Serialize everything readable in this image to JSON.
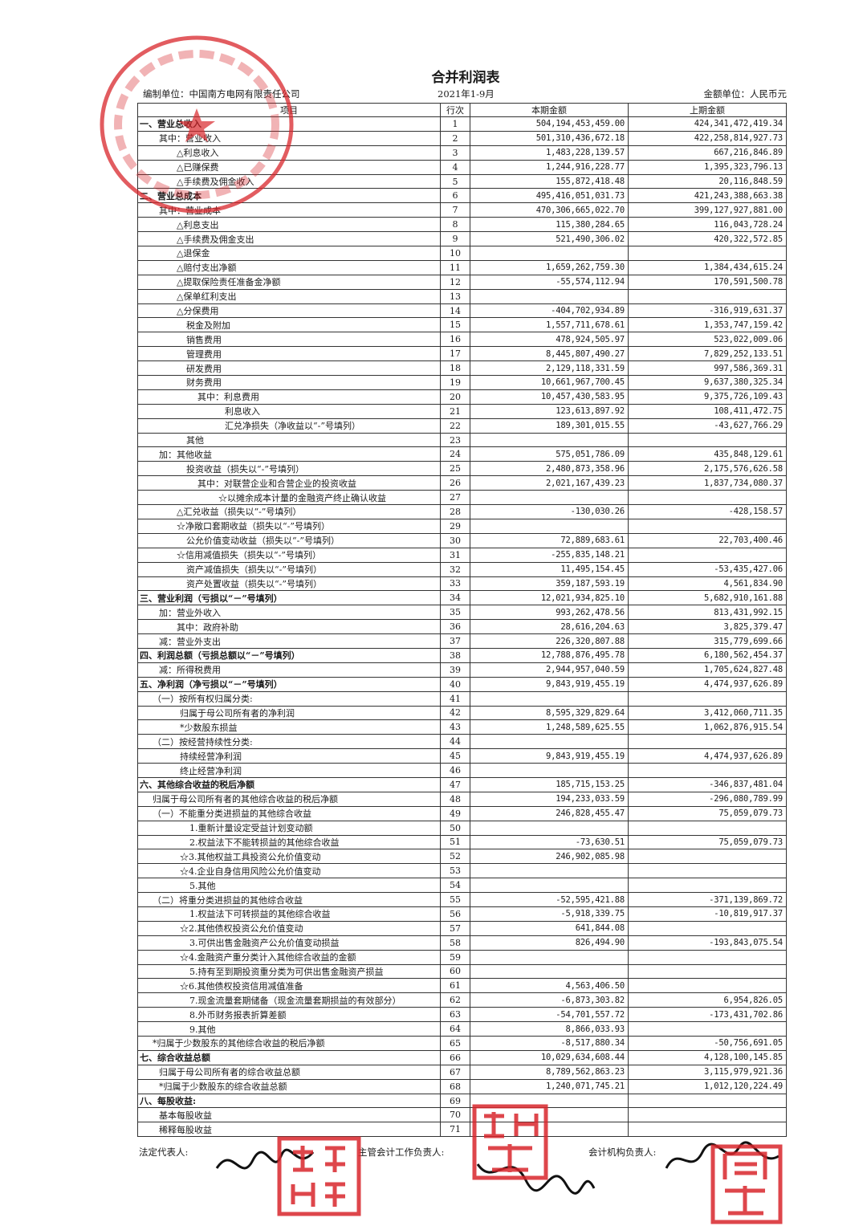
{
  "document": {
    "title": "合并利润表",
    "prepared_by": "编制单位：中国南方电网有限责任公司",
    "period": "2021年1-9月",
    "currency_unit": "金额单位：人民币元"
  },
  "table": {
    "headers": [
      "项目",
      "行次",
      "本期金额",
      "上期金额"
    ],
    "rows": [
      {
        "label": "一、营业总收入",
        "level": 0,
        "bold": true,
        "no": "1",
        "current": "504,194,453,459.00",
        "prior": "424,341,472,419.34"
      },
      {
        "label": "其中：营业收入",
        "level": 1,
        "no": "2",
        "current": "501,310,436,672.18",
        "prior": "422,258,814,927.73"
      },
      {
        "label": "△利息收入",
        "level": 2,
        "no": "3",
        "current": "1,483,228,139.57",
        "prior": "667,216,846.89"
      },
      {
        "label": "△已赚保费",
        "level": 2,
        "no": "4",
        "current": "1,244,916,228.77",
        "prior": "1,395,323,796.13"
      },
      {
        "label": "△手续费及佣金收入",
        "level": 2,
        "no": "5",
        "current": "155,872,418.48",
        "prior": "20,116,848.59"
      },
      {
        "label": "二、营业总成本",
        "level": 0,
        "bold": true,
        "no": "6",
        "current": "495,416,051,031.73",
        "prior": "421,243,388,663.38"
      },
      {
        "label": "其中：营业成本",
        "level": 1,
        "no": "7",
        "current": "470,306,665,022.70",
        "prior": "399,127,927,881.00"
      },
      {
        "label": "△利息支出",
        "level": 2,
        "no": "8",
        "current": "115,380,284.65",
        "prior": "116,043,728.24"
      },
      {
        "label": "△手续费及佣金支出",
        "level": 2,
        "no": "9",
        "current": "521,490,306.02",
        "prior": "420,322,572.85"
      },
      {
        "label": "△退保金",
        "level": 2,
        "no": "10",
        "current": "",
        "prior": ""
      },
      {
        "label": "△赔付支出净额",
        "level": 2,
        "no": "11",
        "current": "1,659,262,759.30",
        "prior": "1,384,434,615.24"
      },
      {
        "label": "△提取保险责任准备金净额",
        "level": 2,
        "no": "12",
        "current": "-55,574,112.94",
        "prior": "170,591,500.78"
      },
      {
        "label": "△保单红利支出",
        "level": 2,
        "no": "13",
        "current": "",
        "prior": ""
      },
      {
        "label": "△分保费用",
        "level": 2,
        "no": "14",
        "current": "-404,702,934.89",
        "prior": "-316,919,631.37"
      },
      {
        "label": "税金及附加",
        "level": 3,
        "no": "15",
        "current": "1,557,711,678.61",
        "prior": "1,353,747,159.42"
      },
      {
        "label": "销售费用",
        "level": 3,
        "no": "16",
        "current": "478,924,505.97",
        "prior": "523,022,009.06"
      },
      {
        "label": "管理费用",
        "level": 3,
        "no": "17",
        "current": "8,445,807,490.27",
        "prior": "7,829,252,133.51"
      },
      {
        "label": "研发费用",
        "level": 3,
        "no": "18",
        "current": "2,129,118,331.59",
        "prior": "997,586,369.31"
      },
      {
        "label": "财务费用",
        "level": 3,
        "no": "19",
        "current": "10,661,967,700.45",
        "prior": "9,637,380,325.34"
      },
      {
        "label": "其中：利息费用",
        "level": 4,
        "no": "20",
        "current": "10,457,430,583.95",
        "prior": "9,375,726,109.43"
      },
      {
        "label": "利息收入",
        "level": 5,
        "no": "21",
        "current": "123,613,897.92",
        "prior": "108,411,472.75"
      },
      {
        "label": "汇兑净损失（净收益以“-”号填列）",
        "level": 5,
        "no": "22",
        "current": "189,301,015.55",
        "prior": "-43,627,766.29"
      },
      {
        "label": "其他",
        "level": 3,
        "no": "23",
        "current": "",
        "prior": ""
      },
      {
        "label": "加：其他收益",
        "level": 1,
        "no": "24",
        "current": "575,051,786.09",
        "prior": "435,848,129.61"
      },
      {
        "label": "投资收益（损失以“-”号填列）",
        "level": 3,
        "no": "25",
        "current": "2,480,873,358.96",
        "prior": "2,175,576,626.58"
      },
      {
        "label": "其中：对联营企业和合营企业的投资收益",
        "level": 4,
        "no": "26",
        "current": "2,021,167,439.23",
        "prior": "1,837,734,080.37"
      },
      {
        "label": "☆以摊余成本计量的金融资产终止确认收益",
        "level": 6,
        "no": "27",
        "current": "",
        "prior": ""
      },
      {
        "label": "△汇兑收益（损失以“-”号填列）",
        "level": 2,
        "no": "28",
        "current": "-130,030.26",
        "prior": "-428,158.57"
      },
      {
        "label": "☆净敞口套期收益（损失以“-”号填列）",
        "level": 2,
        "no": "29",
        "current": "",
        "prior": ""
      },
      {
        "label": "公允价值变动收益（损失以“-”号填列）",
        "level": 3,
        "no": "30",
        "current": "72,889,683.61",
        "prior": "22,703,400.46"
      },
      {
        "label": "☆信用减值损失（损失以“-”号填列）",
        "level": 2,
        "no": "31",
        "current": "-255,835,148.21",
        "prior": ""
      },
      {
        "label": "资产减值损失（损失以“-”号填列）",
        "level": 3,
        "no": "32",
        "current": "11,495,154.45",
        "prior": "-53,435,427.06"
      },
      {
        "label": "资产处置收益（损失以“-”号填列）",
        "level": 3,
        "no": "33",
        "current": "359,187,593.19",
        "prior": "4,561,834.90"
      },
      {
        "label": "三、营业利润（亏损以“－”号填列）",
        "level": 0,
        "bold": true,
        "no": "34",
        "current": "12,021,934,825.10",
        "prior": "5,682,910,161.88"
      },
      {
        "label": "加：营业外收入",
        "level": 1,
        "no": "35",
        "current": "993,262,478.56",
        "prior": "813,431,992.15"
      },
      {
        "label": "其中：政府补助",
        "level": 2,
        "no": "36",
        "current": "28,616,204.63",
        "prior": "3,825,379.47"
      },
      {
        "label": "减：营业外支出",
        "level": 1,
        "no": "37",
        "current": "226,320,807.88",
        "prior": "315,779,699.66"
      },
      {
        "label": "四、利润总额（亏损总额以“－”号填列）",
        "level": 0,
        "bold": true,
        "no": "38",
        "current": "12,788,876,495.78",
        "prior": "6,180,562,454.37"
      },
      {
        "label": "减：所得税费用",
        "level": 1,
        "no": "39",
        "current": "2,944,957,040.59",
        "prior": "1,705,624,827.48"
      },
      {
        "label": "五、净利润（净亏损以“－”号填列）",
        "level": 0,
        "bold": true,
        "no": "40",
        "current": "9,843,919,455.19",
        "prior": "4,474,937,626.89"
      },
      {
        "label": "（一）按所有权归属分类:",
        "level": 9,
        "no": "41",
        "current": "",
        "prior": ""
      },
      {
        "label": "归属于母公司所有者的净利润",
        "level": 7,
        "no": "42",
        "current": "8,595,329,829.64",
        "prior": "3,412,060,711.35"
      },
      {
        "label": "*少数股东损益",
        "level": 7,
        "no": "43",
        "current": "1,248,589,625.55",
        "prior": "1,062,876,915.54"
      },
      {
        "label": "（二）按经营持续性分类:",
        "level": 9,
        "no": "44",
        "current": "",
        "prior": ""
      },
      {
        "label": "持续经营净利润",
        "level": 7,
        "no": "45",
        "current": "9,843,919,455.19",
        "prior": "4,474,937,626.89"
      },
      {
        "label": "终止经营净利润",
        "level": 7,
        "no": "46",
        "current": "",
        "prior": ""
      },
      {
        "label": "六、其他综合收益的税后净额",
        "level": 0,
        "bold": true,
        "no": "47",
        "current": "185,715,153.25",
        "prior": "-346,837,481.04"
      },
      {
        "label": "归属于母公司所有者的其他综合收益的税后净额",
        "level": 9,
        "no": "48",
        "current": "194,233,033.59",
        "prior": "-296,080,789.99"
      },
      {
        "label": "（一）不能重分类进损益的其他综合收益",
        "level": 9,
        "no": "49",
        "current": "246,828,455.47",
        "prior": "75,059,079.73"
      },
      {
        "label": "1.重新计量设定受益计划变动额",
        "level": 8,
        "no": "50",
        "current": "",
        "prior": ""
      },
      {
        "label": "2.权益法下不能转损益的其他综合收益",
        "level": 8,
        "no": "51",
        "current": "-73,630.51",
        "prior": "75,059,079.73"
      },
      {
        "label": "☆3.其他权益工具投资公允价值变动",
        "level": 7,
        "no": "52",
        "current": "246,902,085.98",
        "prior": ""
      },
      {
        "label": "☆4.企业自身信用风险公允价值变动",
        "level": 7,
        "no": "53",
        "current": "",
        "prior": ""
      },
      {
        "label": "5.其他",
        "level": 8,
        "no": "54",
        "current": "",
        "prior": ""
      },
      {
        "label": "（二）将重分类进损益的其他综合收益",
        "level": 9,
        "no": "55",
        "current": "-52,595,421.88",
        "prior": "-371,139,869.72"
      },
      {
        "label": "1.权益法下可转损益的其他综合收益",
        "level": 8,
        "no": "56",
        "current": "-5,918,339.75",
        "prior": "-10,819,917.37"
      },
      {
        "label": "☆2.其他债权投资公允价值变动",
        "level": 7,
        "no": "57",
        "current": "641,844.08",
        "prior": ""
      },
      {
        "label": "3.可供出售金融资产公允价值变动损益",
        "level": 8,
        "no": "58",
        "current": "826,494.90",
        "prior": "-193,843,075.54"
      },
      {
        "label": "☆4.金融资产重分类计入其他综合收益的金额",
        "level": 7,
        "no": "59",
        "current": "",
        "prior": ""
      },
      {
        "label": "5.持有至到期投资重分类为可供出售金融资产损益",
        "level": 8,
        "no": "60",
        "current": "",
        "prior": ""
      },
      {
        "label": "☆6.其他债权投资信用减值准备",
        "level": 7,
        "no": "61",
        "current": "4,563,406.50",
        "prior": ""
      },
      {
        "label": "7.现金流量套期储备（现金流量套期损益的有效部分）",
        "level": 8,
        "no": "62",
        "current": "-6,873,303.82",
        "prior": "6,954,826.05"
      },
      {
        "label": "8.外币财务报表折算差额",
        "level": 8,
        "no": "63",
        "current": "-54,701,557.72",
        "prior": "-173,431,702.86"
      },
      {
        "label": "9.其他",
        "level": 8,
        "no": "64",
        "current": "8,866,033.93",
        "prior": ""
      },
      {
        "label": "*归属于少数股东的其他综合收益的税后净额",
        "level": 9,
        "no": "65",
        "current": "-8,517,880.34",
        "prior": "-50,756,691.05"
      },
      {
        "label": "七、综合收益总额",
        "level": 0,
        "bold": true,
        "no": "66",
        "current": "10,029,634,608.44",
        "prior": "4,128,100,145.85"
      },
      {
        "label": "归属于母公司所有者的综合收益总额",
        "level": 1,
        "no": "67",
        "current": "8,789,562,863.23",
        "prior": "3,115,979,921.36"
      },
      {
        "label": "*归属于少数股东的综合收益总额",
        "level": 1,
        "no": "68",
        "current": "1,240,071,745.21",
        "prior": "1,012,120,224.49"
      },
      {
        "label": "八、每股收益:",
        "level": 0,
        "bold": true,
        "no": "69",
        "current": "",
        "prior": ""
      },
      {
        "label": "基本每股收益",
        "level": 1,
        "no": "70",
        "current": "",
        "prior": ""
      },
      {
        "label": "稀释每股收益",
        "level": 1,
        "no": "71",
        "current": "",
        "prior": ""
      }
    ]
  },
  "signatures": {
    "legal_rep": "法定代表人:",
    "chief_accountant": "主管会计工作负责人:",
    "accounting_head": "会计机构负责人:"
  },
  "stamps": {
    "company_seal": "中国南方电网有限责任公司",
    "seal_1": "孟振",
    "seal_2": "肖立新",
    "seal_3": "周斌",
    "color": "#d8262b"
  }
}
